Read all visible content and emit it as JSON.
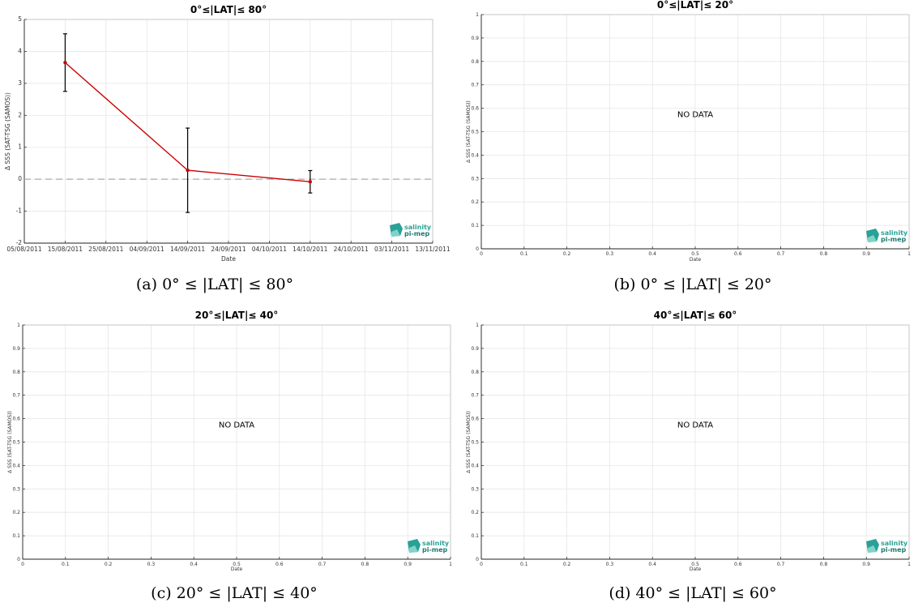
{
  "chart_data": [
    {
      "type": "line",
      "title": "0°≤|LAT|≤ 80°",
      "caption": "(a) 0° ≤ |LAT| ≤ 80°",
      "xlabel": "Date",
      "ylabel": "Δ SSS (SAT-TSG (SAMOS))",
      "x_ticks": [
        "05/08/2011",
        "15/08/2011",
        "25/08/2011",
        "04/09/2011",
        "14/09/2011",
        "24/09/2011",
        "04/10/2011",
        "14/10/2011",
        "24/10/2011",
        "03/11/2011",
        "13/11/2011"
      ],
      "y_ticks": [
        "-2",
        "-1",
        "0",
        "1",
        "2",
        "3",
        "4",
        "5"
      ],
      "xlim": [
        "2011-08-05",
        "2011-11-13"
      ],
      "ylim": [
        -2,
        5
      ],
      "grid": true,
      "reference_line": 0,
      "series": [
        {
          "color": "#cc0000",
          "x": [
            "2011-08-15",
            "2011-09-14",
            "2011-10-14"
          ],
          "y": [
            3.65,
            0.28,
            -0.08
          ],
          "err": [
            0.9,
            1.32,
            0.35
          ]
        }
      ],
      "logo": [
        "salinity",
        "pi-mep"
      ]
    },
    {
      "type": "line",
      "title": "0°≤|LAT|≤ 20°",
      "caption": "(b) 0° ≤ |LAT| ≤ 20°",
      "xlabel": "Date",
      "ylabel": "Δ SSS (SAT-TSG (SAMOS))",
      "x_ticks": [
        "0",
        "0.1",
        "0.2",
        "0.3",
        "0.4",
        "0.5",
        "0.6",
        "0.7",
        "0.8",
        "0.9",
        "1"
      ],
      "y_ticks": [
        "0",
        "0.1",
        "0.2",
        "0.3",
        "0.4",
        "0.5",
        "0.6",
        "0.7",
        "0.8",
        "0.9",
        "1"
      ],
      "xlim": [
        0,
        1
      ],
      "ylim": [
        0,
        1
      ],
      "grid": true,
      "annotation": "NO DATA",
      "series": [],
      "logo": [
        "salinity",
        "pi-mep"
      ]
    },
    {
      "type": "line",
      "title": "20°≤|LAT|≤ 40°",
      "caption": "(c) 20° ≤ |LAT| ≤ 40°",
      "xlabel": "Date",
      "ylabel": "Δ SSS (SAT-TSG (SAMOS))",
      "x_ticks": [
        "0",
        "0.1",
        "0.2",
        "0.3",
        "0.4",
        "0.5",
        "0.6",
        "0.7",
        "0.8",
        "0.9",
        "1"
      ],
      "y_ticks": [
        "0",
        "0.1",
        "0.2",
        "0.3",
        "0.4",
        "0.5",
        "0.6",
        "0.7",
        "0.8",
        "0.9",
        "1"
      ],
      "xlim": [
        0,
        1
      ],
      "ylim": [
        0,
        1
      ],
      "grid": true,
      "annotation": "NO DATA",
      "series": [],
      "logo": [
        "salinity",
        "pi-mep"
      ]
    },
    {
      "type": "line",
      "title": "40°≤|LAT|≤ 60°",
      "caption": "(d) 40° ≤ |LAT| ≤ 60°",
      "xlabel": "Date",
      "ylabel": "Δ SSS (SAT-TSG (SAMOS))",
      "x_ticks": [
        "0",
        "0.1",
        "0.2",
        "0.3",
        "0.4",
        "0.5",
        "0.6",
        "0.7",
        "0.8",
        "0.9",
        "1"
      ],
      "y_ticks": [
        "0",
        "0.1",
        "0.2",
        "0.3",
        "0.4",
        "0.5",
        "0.6",
        "0.7",
        "0.8",
        "0.9",
        "1"
      ],
      "xlim": [
        0,
        1
      ],
      "ylim": [
        0,
        1
      ],
      "grid": true,
      "annotation": "NO DATA",
      "series": [],
      "logo": [
        "salinity",
        "pi-mep"
      ]
    }
  ],
  "colors": {
    "series": "#cc0000",
    "errorbar": "#000000",
    "grid": "#e6e6e6",
    "reference": "#aaaaaa",
    "logo": "#2aa198"
  }
}
